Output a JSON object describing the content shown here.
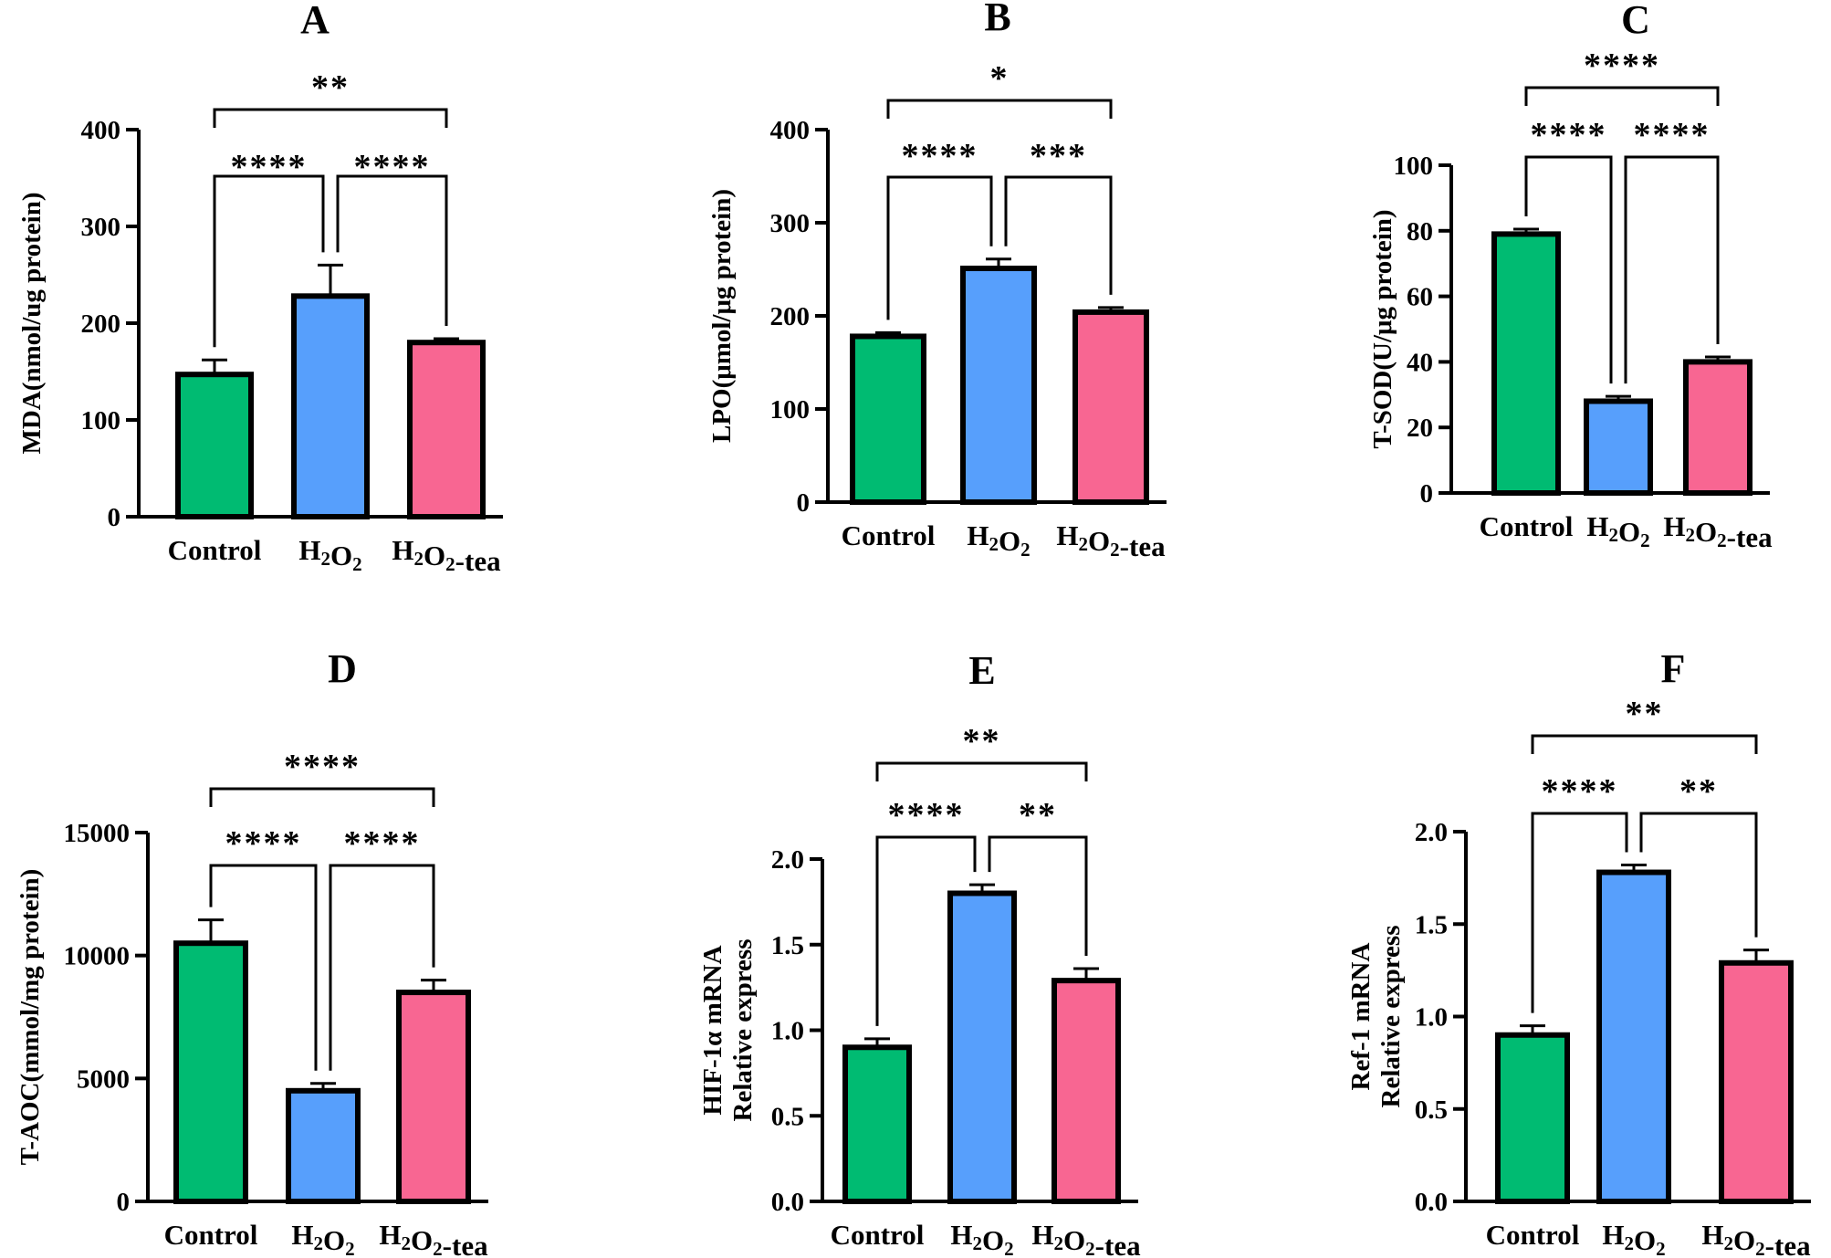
{
  "colors": {
    "Control": "#00bb72",
    "H2O2": "#579ffc",
    "H2O2-tea": "#f86692",
    "outline": "#000000"
  },
  "chart_data": [
    {
      "type": "bar",
      "panel": "A",
      "categories": [
        "Control",
        "H2O2",
        "H2O2-tea"
      ],
      "values": [
        147,
        228,
        180
      ],
      "errors": [
        15,
        32,
        4
      ],
      "ylabel": "MDA(nmol/ug protein)",
      "ylim": [
        0,
        400
      ],
      "yticks": [
        "0",
        "100",
        "200",
        "300",
        "400"
      ],
      "brackets": [
        {
          "from": "Control",
          "to": "H2O2-tea",
          "label": "**"
        },
        {
          "from": "Control",
          "to": "H2O2",
          "label": "****"
        },
        {
          "from": "H2O2",
          "to": "H2O2-tea",
          "label": "****"
        }
      ]
    },
    {
      "type": "bar",
      "panel": "B",
      "categories": [
        "Control",
        "H2O2",
        "H2O2-tea"
      ],
      "values": [
        178,
        251,
        204
      ],
      "errors": [
        4,
        10,
        5
      ],
      "ylabel": "LPO(μmol/μg protein)",
      "ylim": [
        0,
        400
      ],
      "yticks": [
        "0",
        "100",
        "200",
        "300",
        "400"
      ],
      "brackets": [
        {
          "from": "Control",
          "to": "H2O2-tea",
          "label": "*"
        },
        {
          "from": "Control",
          "to": "H2O2",
          "label": "****"
        },
        {
          "from": "H2O2",
          "to": "H2O2-tea",
          "label": "***"
        }
      ]
    },
    {
      "type": "bar",
      "panel": "C",
      "categories": [
        "Control",
        "H2O2",
        "H2O2-tea"
      ],
      "values": [
        79,
        28,
        40
      ],
      "errors": [
        1.5,
        1.5,
        1.5
      ],
      "ylabel": "T-SOD(U/μg protein)",
      "ylim": [
        0,
        100
      ],
      "yticks": [
        "0",
        "20",
        "40",
        "60",
        "80",
        "100"
      ],
      "brackets": [
        {
          "from": "Control",
          "to": "H2O2-tea",
          "label": "****"
        },
        {
          "from": "Control",
          "to": "H2O2",
          "label": "****"
        },
        {
          "from": "H2O2",
          "to": "H2O2-tea",
          "label": "****"
        }
      ]
    },
    {
      "type": "bar",
      "panel": "D",
      "categories": [
        "Control",
        "H2O2",
        "H2O2-tea"
      ],
      "values": [
        10500,
        4500,
        8500
      ],
      "errors": [
        950,
        300,
        500
      ],
      "ylabel": "T-AOC(mmol/mg protein)",
      "ylim": [
        0,
        15000
      ],
      "yticks": [
        "0",
        "5000",
        "10000",
        "15000"
      ],
      "brackets": [
        {
          "from": "Control",
          "to": "H2O2-tea",
          "label": "****"
        },
        {
          "from": "Control",
          "to": "H2O2",
          "label": "****"
        },
        {
          "from": "H2O2",
          "to": "H2O2-tea",
          "label": "****"
        }
      ]
    },
    {
      "type": "bar",
      "panel": "E",
      "categories": [
        "Control",
        "H2O2",
        "H2O2-tea"
      ],
      "values": [
        0.9,
        1.8,
        1.29
      ],
      "errors": [
        0.05,
        0.05,
        0.07
      ],
      "ylabel": "HIF-1α mRNA",
      "ylabel2": "Relative express",
      "ylim": [
        0,
        2.0
      ],
      "yticks": [
        "0.0",
        "0.5",
        "1.0",
        "1.5",
        "2.0"
      ],
      "brackets": [
        {
          "from": "Control",
          "to": "H2O2-tea",
          "label": "**"
        },
        {
          "from": "Control",
          "to": "H2O2",
          "label": "****"
        },
        {
          "from": "H2O2",
          "to": "H2O2-tea",
          "label": "**"
        }
      ]
    },
    {
      "type": "bar",
      "panel": "F",
      "categories": [
        "Control",
        "H2O2",
        "H2O2-tea"
      ],
      "values": [
        0.9,
        1.78,
        1.29
      ],
      "errors": [
        0.05,
        0.04,
        0.07
      ],
      "ylabel": "Ref-1 mRNA",
      "ylabel2": "Relative express",
      "ylim": [
        0,
        2.0
      ],
      "yticks": [
        "0.0",
        "0.5",
        "1.0",
        "1.5",
        "2.0"
      ],
      "brackets": [
        {
          "from": "Control",
          "to": "H2O2-tea",
          "label": "**"
        },
        {
          "from": "Control",
          "to": "H2O2",
          "label": "****"
        },
        {
          "from": "H2O2",
          "to": "H2O2-tea",
          "label": "**"
        }
      ]
    }
  ]
}
